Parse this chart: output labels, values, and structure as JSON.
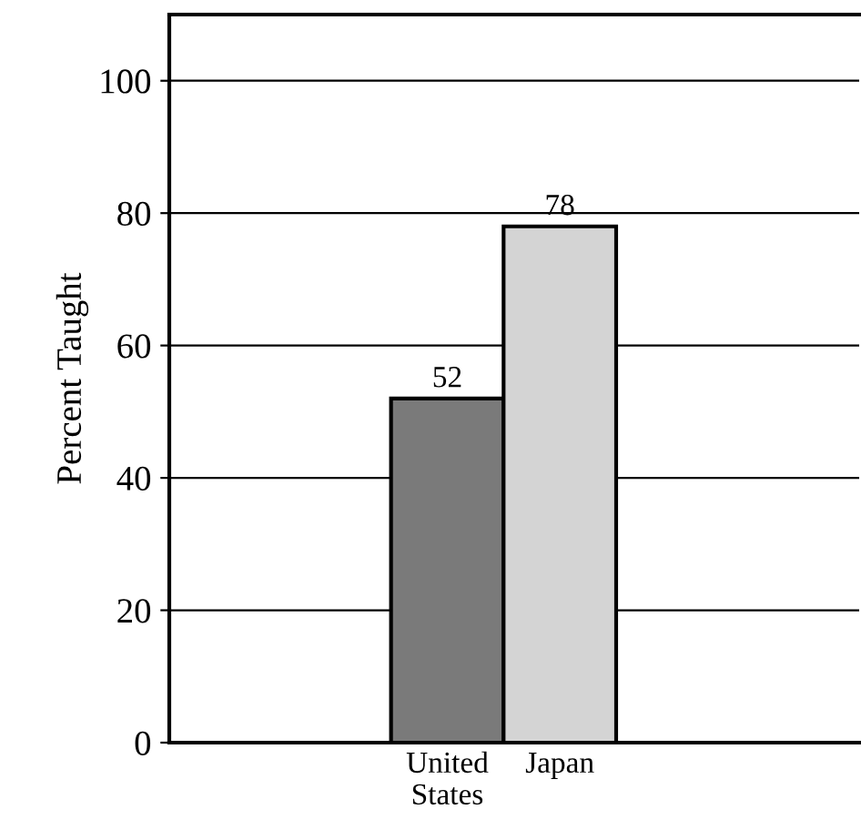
{
  "chart_data": {
    "type": "bar",
    "ylabel": "Percent Taught",
    "categories": [
      "United\nStates",
      "Japan"
    ],
    "values": [
      52,
      78
    ],
    "colors": [
      "#7a7a7a",
      "#d4d4d4"
    ],
    "ylim": [
      0,
      110
    ],
    "yticks": [
      0,
      20,
      40,
      60,
      80,
      100
    ],
    "grid": "y",
    "data_labels": true
  }
}
